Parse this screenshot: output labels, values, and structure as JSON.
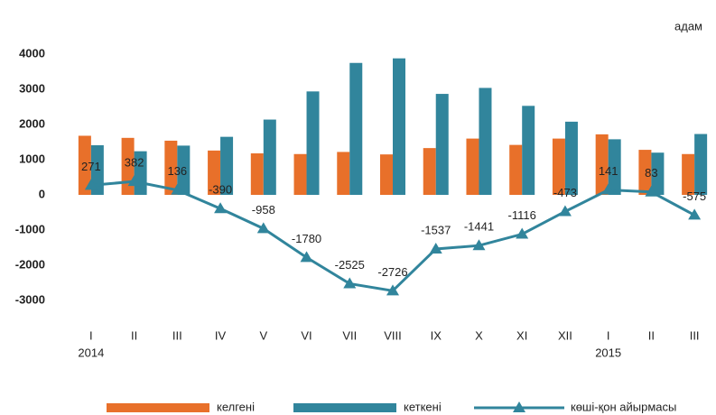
{
  "chart_data": {
    "type": "bar_line",
    "unit_label": "адам",
    "categories": [
      "I",
      "II",
      "III",
      "IV",
      "V",
      "VI",
      "VII",
      "VIII",
      "IX",
      "X",
      "XI",
      "XII",
      "I",
      "II",
      "III"
    ],
    "category_groups": [
      {
        "label": "2014",
        "start": 0
      },
      {
        "label": "2015",
        "start": 12
      }
    ],
    "series": [
      {
        "name": "келгені",
        "type": "bar",
        "color": "#e8702a",
        "values": [
          1680,
          1620,
          1540,
          1260,
          1180,
          1160,
          1220,
          1150,
          1330,
          1600,
          1420,
          1600,
          1720,
          1280,
          1160
        ]
      },
      {
        "name": "кеткені",
        "type": "bar",
        "color": "#31859c",
        "values": [
          1410,
          1240,
          1400,
          1650,
          2140,
          2940,
          3750,
          3880,
          2870,
          3040,
          2530,
          2080,
          1580,
          1200,
          1730
        ]
      },
      {
        "name": "көші-қон айырмасы",
        "type": "line",
        "color": "#31859c",
        "values": [
          271,
          382,
          136,
          -390,
          -958,
          -1780,
          -2525,
          -2726,
          -1537,
          -1441,
          -1116,
          -473,
          141,
          83,
          -575
        ]
      }
    ],
    "ylim": [
      -3000,
      4000
    ],
    "yticks": [
      -3000,
      -2000,
      -1000,
      0,
      1000,
      2000,
      3000,
      4000
    ]
  }
}
